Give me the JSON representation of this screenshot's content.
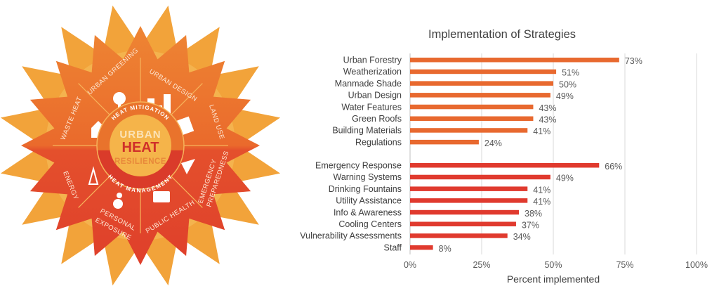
{
  "infographic": {
    "center": {
      "line1": "URBAN",
      "line2": "HEAT",
      "line3": "RESILIENCE"
    },
    "ring_top": "HEAT MITIGATION",
    "ring_bottom": "HEAT MANAGEMENT",
    "segments": [
      "URBAN GREENING",
      "URBAN DESIGN",
      "LAND USE",
      "EMERGENCY",
      "PREPAREDNESS",
      "PUBLIC HEALTH",
      "PERSONAL",
      "EXPOSURE",
      "ENERGY",
      "WASTE HEAT"
    ],
    "colors": {
      "outer_star": "#F2A33A",
      "mitigation": "#EC7A2E",
      "management": "#E0442C",
      "center": "#F5B44A",
      "heat_text": "#D0302A"
    }
  },
  "chart_data": {
    "type": "bar",
    "orientation": "horizontal",
    "title": "Implementation of Strategies",
    "xlabel": "Percent implemented",
    "ylabel": "",
    "xlim": [
      0,
      100
    ],
    "xticks": [
      "0%",
      "25%",
      "50%",
      "75%",
      "100%"
    ],
    "grid": true,
    "series": [
      {
        "name": "Heat Mitigation",
        "color": "#E8692F",
        "categories": [
          "Urban Forestry",
          "Weatherization",
          "Manmade Shade",
          "Urban Design",
          "Water Features",
          "Green Roofs",
          "Building Materials",
          "Regulations"
        ],
        "values": [
          73,
          51,
          50,
          49,
          43,
          43,
          41,
          24
        ],
        "labels": [
          "73%",
          "51%",
          "50%",
          "49%",
          "43%",
          "43%",
          "41%",
          "24%"
        ]
      },
      {
        "name": "Heat Management",
        "color": "#E03A2E",
        "categories": [
          "Emergency Response",
          "Warning Systems",
          "Drinking Fountains",
          "Utility Assistance",
          "Info & Awareness",
          "Cooling Centers",
          "Vulnerability Assessments",
          "Staff"
        ],
        "values": [
          66,
          49,
          41,
          41,
          38,
          37,
          34,
          8
        ],
        "labels": [
          "66%",
          "49%",
          "41%",
          "41%",
          "38%",
          "37%",
          "34%",
          "8%"
        ]
      }
    ]
  }
}
